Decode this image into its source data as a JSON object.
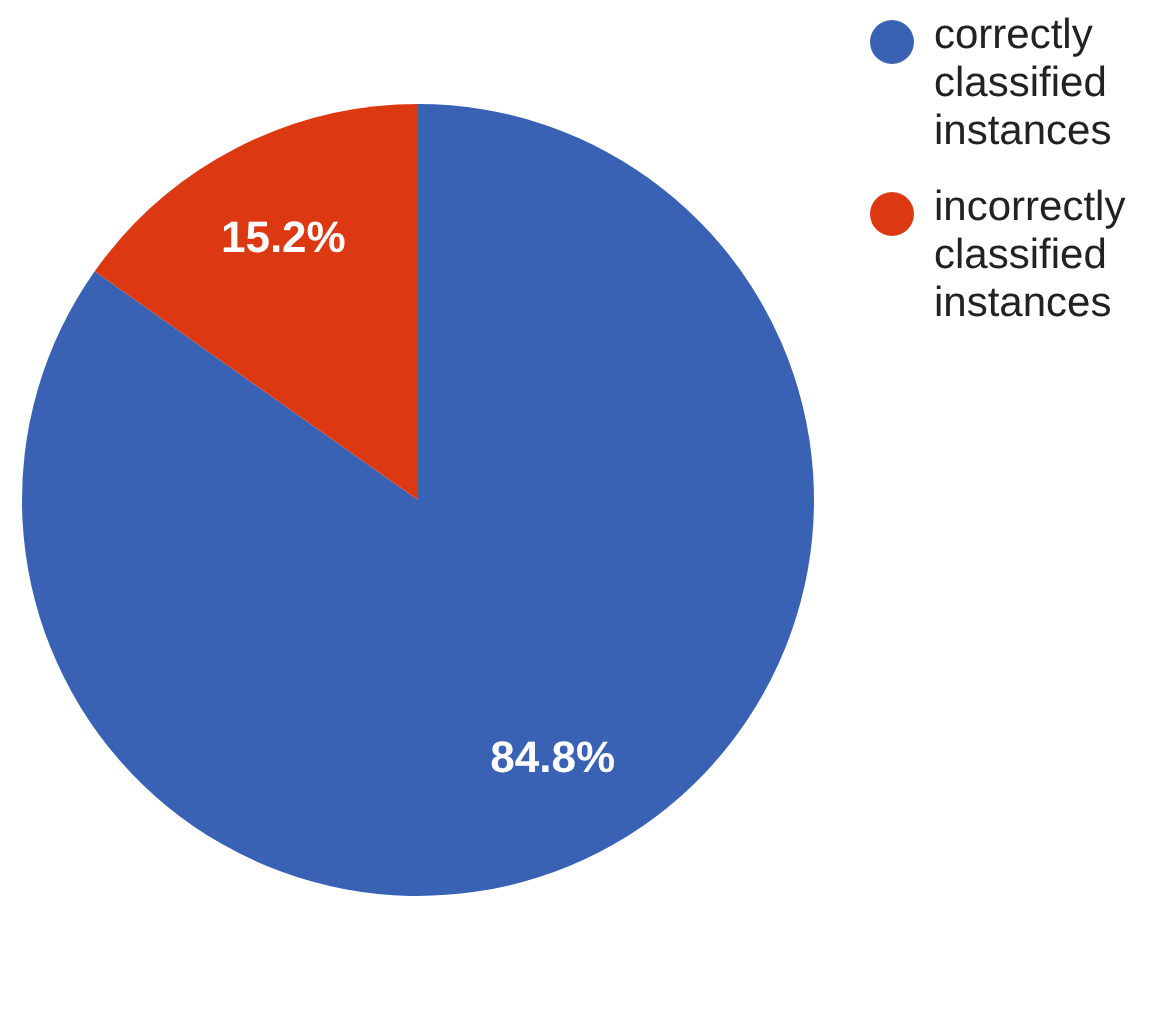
{
  "chart_data": {
    "type": "pie",
    "categories": [
      "correctly classified instances",
      "incorrectly classified instances"
    ],
    "values": [
      84.8,
      15.2
    ],
    "value_labels": [
      "84.8%",
      "15.2%"
    ],
    "colors": [
      "#3a62b4",
      "#dc3912"
    ],
    "legend": "top right"
  }
}
